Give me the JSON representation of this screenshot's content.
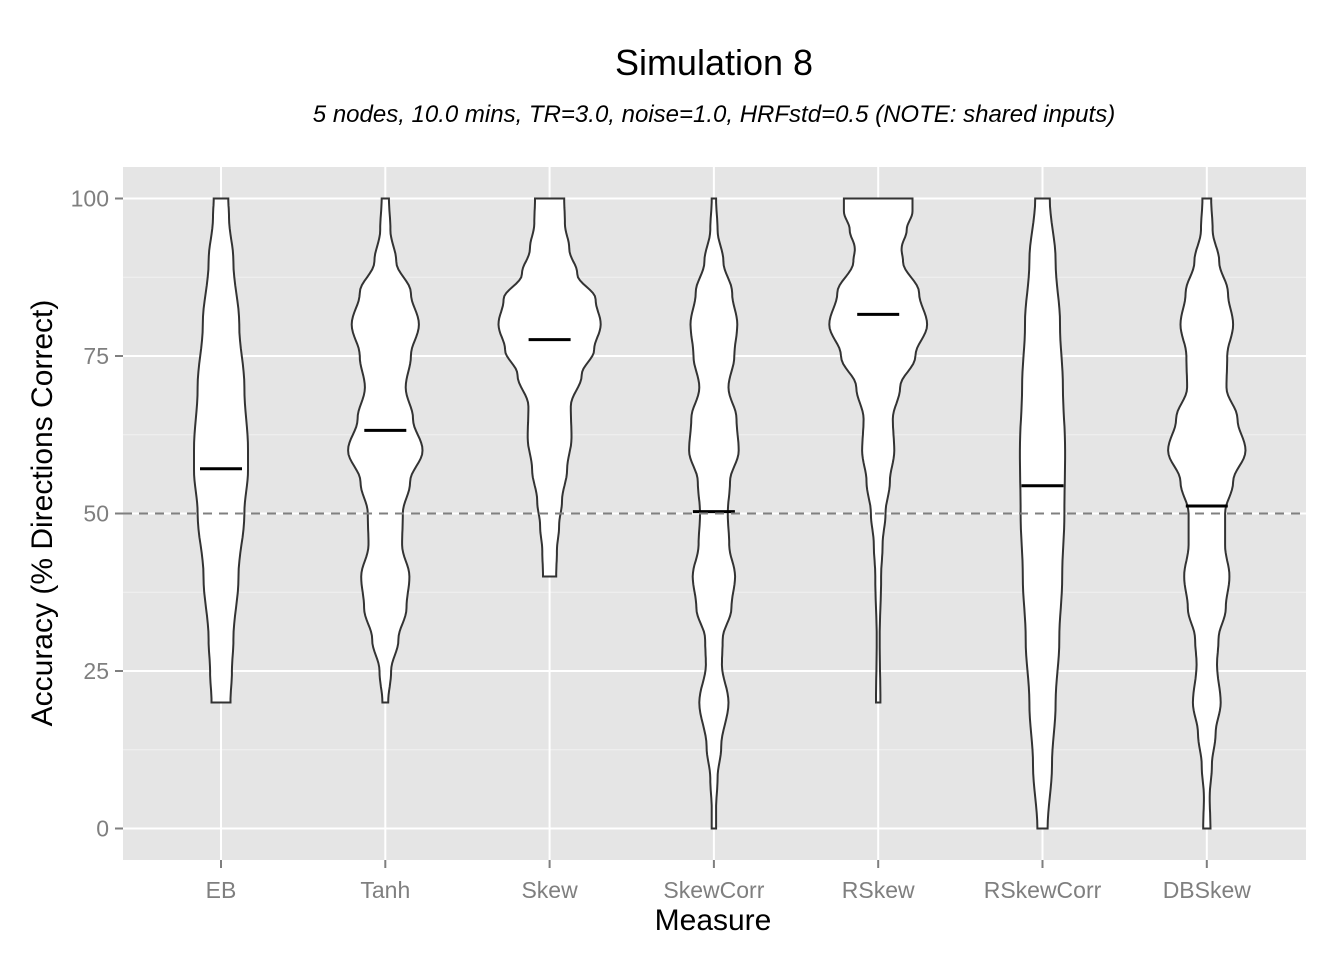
{
  "chart_data": {
    "type": "violin",
    "title": "Simulation 8",
    "subtitle": "5 nodes, 10.0 mins, TR=3.0, noise=1.0, HRFstd=0.5 (NOTE: shared inputs)",
    "xlabel": "Measure",
    "ylabel": "Accuracy (% Directions Correct)",
    "ylim": [
      -5,
      105
    ],
    "y_ticks": [
      0,
      25,
      50,
      75,
      100
    ],
    "y_tick_labels": [
      "0",
      "25",
      "50",
      "75",
      "100"
    ],
    "grid": true,
    "reference_line": {
      "y": 50,
      "style": "dashed"
    },
    "categories": [
      "EB",
      "Tanh",
      "Skew",
      "SkewCorr",
      "RSkew",
      "RSkewCorr",
      "DBSkew"
    ],
    "series": [
      {
        "category": "EB",
        "mean": 57.1,
        "min": 20,
        "max": 100,
        "density": [
          [
            20,
            0.13
          ],
          [
            25,
            0.15
          ],
          [
            30,
            0.17
          ],
          [
            40,
            0.24
          ],
          [
            50,
            0.32
          ],
          [
            57,
            0.37
          ],
          [
            60,
            0.37
          ],
          [
            70,
            0.32
          ],
          [
            80,
            0.25
          ],
          [
            90,
            0.17
          ],
          [
            97,
            0.11
          ],
          [
            100,
            0.1
          ]
        ]
      },
      {
        "category": "Tanh",
        "mean": 63.2,
        "min": 20,
        "max": 100,
        "density": [
          [
            20,
            0.04
          ],
          [
            25,
            0.08
          ],
          [
            30,
            0.18
          ],
          [
            35,
            0.29
          ],
          [
            40,
            0.33
          ],
          [
            45,
            0.23
          ],
          [
            50,
            0.24
          ],
          [
            55,
            0.34
          ],
          [
            60,
            0.51
          ],
          [
            65,
            0.38
          ],
          [
            70,
            0.28
          ],
          [
            75,
            0.35
          ],
          [
            80,
            0.46
          ],
          [
            85,
            0.35
          ],
          [
            90,
            0.15
          ],
          [
            95,
            0.07
          ],
          [
            100,
            0.05
          ]
        ]
      },
      {
        "category": "Skew",
        "mean": 77.6,
        "min": 40,
        "max": 100,
        "density": [
          [
            40,
            0.09
          ],
          [
            44,
            0.1
          ],
          [
            48,
            0.13
          ],
          [
            52,
            0.17
          ],
          [
            57,
            0.24
          ],
          [
            62,
            0.3
          ],
          [
            67,
            0.29
          ],
          [
            72,
            0.44
          ],
          [
            76,
            0.61
          ],
          [
            80,
            0.7
          ],
          [
            84,
            0.63
          ],
          [
            88,
            0.38
          ],
          [
            92,
            0.27
          ],
          [
            96,
            0.21
          ],
          [
            100,
            0.2
          ]
        ]
      },
      {
        "category": "SkewCorr",
        "mean": 50.3,
        "min": 0,
        "max": 100,
        "density": [
          [
            0,
            0.03
          ],
          [
            3,
            0.03
          ],
          [
            8,
            0.05
          ],
          [
            13,
            0.1
          ],
          [
            20,
            0.2
          ],
          [
            26,
            0.11
          ],
          [
            30,
            0.12
          ],
          [
            35,
            0.24
          ],
          [
            40,
            0.29
          ],
          [
            45,
            0.21
          ],
          [
            50,
            0.19
          ],
          [
            55,
            0.22
          ],
          [
            60,
            0.34
          ],
          [
            65,
            0.31
          ],
          [
            70,
            0.2
          ],
          [
            75,
            0.28
          ],
          [
            80,
            0.32
          ],
          [
            85,
            0.25
          ],
          [
            90,
            0.13
          ],
          [
            95,
            0.05
          ],
          [
            100,
            0.03
          ]
        ]
      },
      {
        "category": "RSkew",
        "mean": 81.6,
        "min": 20,
        "max": 100,
        "density": [
          [
            20,
            0.03
          ],
          [
            30,
            0.02
          ],
          [
            40,
            0.04
          ],
          [
            45,
            0.06
          ],
          [
            50,
            0.1
          ],
          [
            55,
            0.16
          ],
          [
            60,
            0.22
          ],
          [
            65,
            0.2
          ],
          [
            70,
            0.3
          ],
          [
            75,
            0.51
          ],
          [
            80,
            0.67
          ],
          [
            85,
            0.56
          ],
          [
            90,
            0.34
          ],
          [
            92,
            0.32
          ],
          [
            95,
            0.39
          ],
          [
            98,
            0.47
          ],
          [
            100,
            0.47
          ]
        ]
      },
      {
        "category": "RSkewCorr",
        "mean": 54.4,
        "min": 0,
        "max": 100,
        "density": [
          [
            0,
            0.07
          ],
          [
            10,
            0.13
          ],
          [
            20,
            0.18
          ],
          [
            30,
            0.23
          ],
          [
            40,
            0.27
          ],
          [
            50,
            0.3
          ],
          [
            60,
            0.31
          ],
          [
            70,
            0.28
          ],
          [
            80,
            0.24
          ],
          [
            90,
            0.18
          ],
          [
            100,
            0.1
          ]
        ]
      },
      {
        "category": "DBSkew",
        "mean": 51.2,
        "min": 0,
        "max": 100,
        "density": [
          [
            0,
            0.05
          ],
          [
            5,
            0.04
          ],
          [
            10,
            0.07
          ],
          [
            15,
            0.12
          ],
          [
            20,
            0.19
          ],
          [
            26,
            0.14
          ],
          [
            30,
            0.16
          ],
          [
            35,
            0.26
          ],
          [
            40,
            0.31
          ],
          [
            45,
            0.25
          ],
          [
            50,
            0.25
          ],
          [
            55,
            0.36
          ],
          [
            60,
            0.53
          ],
          [
            65,
            0.42
          ],
          [
            70,
            0.27
          ],
          [
            75,
            0.28
          ],
          [
            80,
            0.36
          ],
          [
            85,
            0.29
          ],
          [
            90,
            0.17
          ],
          [
            95,
            0.08
          ],
          [
            100,
            0.06
          ]
        ]
      }
    ]
  }
}
